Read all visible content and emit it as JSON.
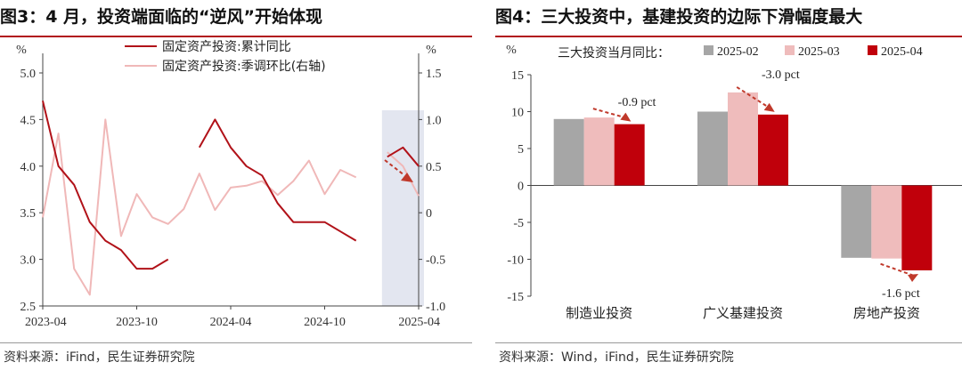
{
  "left": {
    "title": "图3：4 月，投资端面临的“逆风”开始体现",
    "source": "资料来源：iFind，民生证券研究院",
    "chart_data": {
      "type": "line",
      "x": [
        "2023-04",
        "2023-05",
        "2023-06",
        "2023-07",
        "2023-08",
        "2023-09",
        "2023-10",
        "2023-11",
        "2023-12",
        "2024-01",
        "2024-02",
        "2024-03",
        "2024-04",
        "2024-05",
        "2024-06",
        "2024-07",
        "2024-08",
        "2024-09",
        "2024-10",
        "2024-11",
        "2024-12",
        "2025-01",
        "2025-02",
        "2025-03",
        "2025-04"
      ],
      "xticks": [
        "2023-04",
        "2023-10",
        "2024-04",
        "2024-10",
        "2025-04"
      ],
      "left_unit": "%",
      "right_unit": "%",
      "ylim_left": [
        2.5,
        5.0
      ],
      "yticks_left": [
        2.5,
        3.0,
        3.5,
        4.0,
        4.5,
        5.0
      ],
      "ylim_right": [
        -1.0,
        1.5
      ],
      "yticks_right": [
        -1.0,
        -0.5,
        0.0,
        0.5,
        1.0,
        1.5
      ],
      "highlight_range": [
        "2025-02",
        "2025-04"
      ],
      "series": [
        {
          "name": "固定资产投资:累计同比",
          "axis": "left",
          "color": "#b11219",
          "values": [
            4.7,
            4.0,
            3.8,
            3.4,
            3.2,
            3.1,
            2.9,
            2.9,
            3.0,
            null,
            4.2,
            4.5,
            4.2,
            4.0,
            3.9,
            3.6,
            3.4,
            3.4,
            3.4,
            3.3,
            3.2,
            null,
            4.1,
            4.2,
            4.0
          ]
        },
        {
          "name": "固定资产投资:季调环比(右轴)",
          "axis": "right",
          "color": "#f0b8b8",
          "values": [
            -0.05,
            0.85,
            -0.6,
            -0.88,
            1.0,
            -0.25,
            0.2,
            -0.05,
            -0.12,
            0.04,
            0.42,
            0.03,
            0.27,
            0.29,
            0.34,
            0.19,
            0.34,
            0.56,
            0.2,
            0.46,
            0.38,
            null,
            0.65,
            0.5,
            0.18
          ]
        }
      ]
    }
  },
  "right": {
    "title": "图4：三大投资中，基建投资的边际下滑幅度最大",
    "source": "资料来源：Wind，iFind，民生证券研究院",
    "chart_data": {
      "type": "bar",
      "unit": "%",
      "legend_title": "三大投资当月同比：",
      "categories": [
        "制造业投资",
        "广义基建投资",
        "房地产投资"
      ],
      "ylim": [
        -15,
        15
      ],
      "yticks": [
        -15,
        -10,
        -5,
        0,
        5,
        10,
        15
      ],
      "series": [
        {
          "name": "2025-02",
          "color": "#a6a6a6",
          "values": [
            9.0,
            10.0,
            -9.8
          ]
        },
        {
          "name": "2025-03",
          "color": "#efbcbc",
          "values": [
            9.2,
            12.6,
            -9.9
          ]
        },
        {
          "name": "2025-04",
          "color": "#c0000b",
          "values": [
            8.3,
            9.6,
            -11.5
          ]
        }
      ],
      "annotations": [
        "-0.9 pct",
        "-3.0 pct",
        "-1.6 pct"
      ]
    }
  }
}
